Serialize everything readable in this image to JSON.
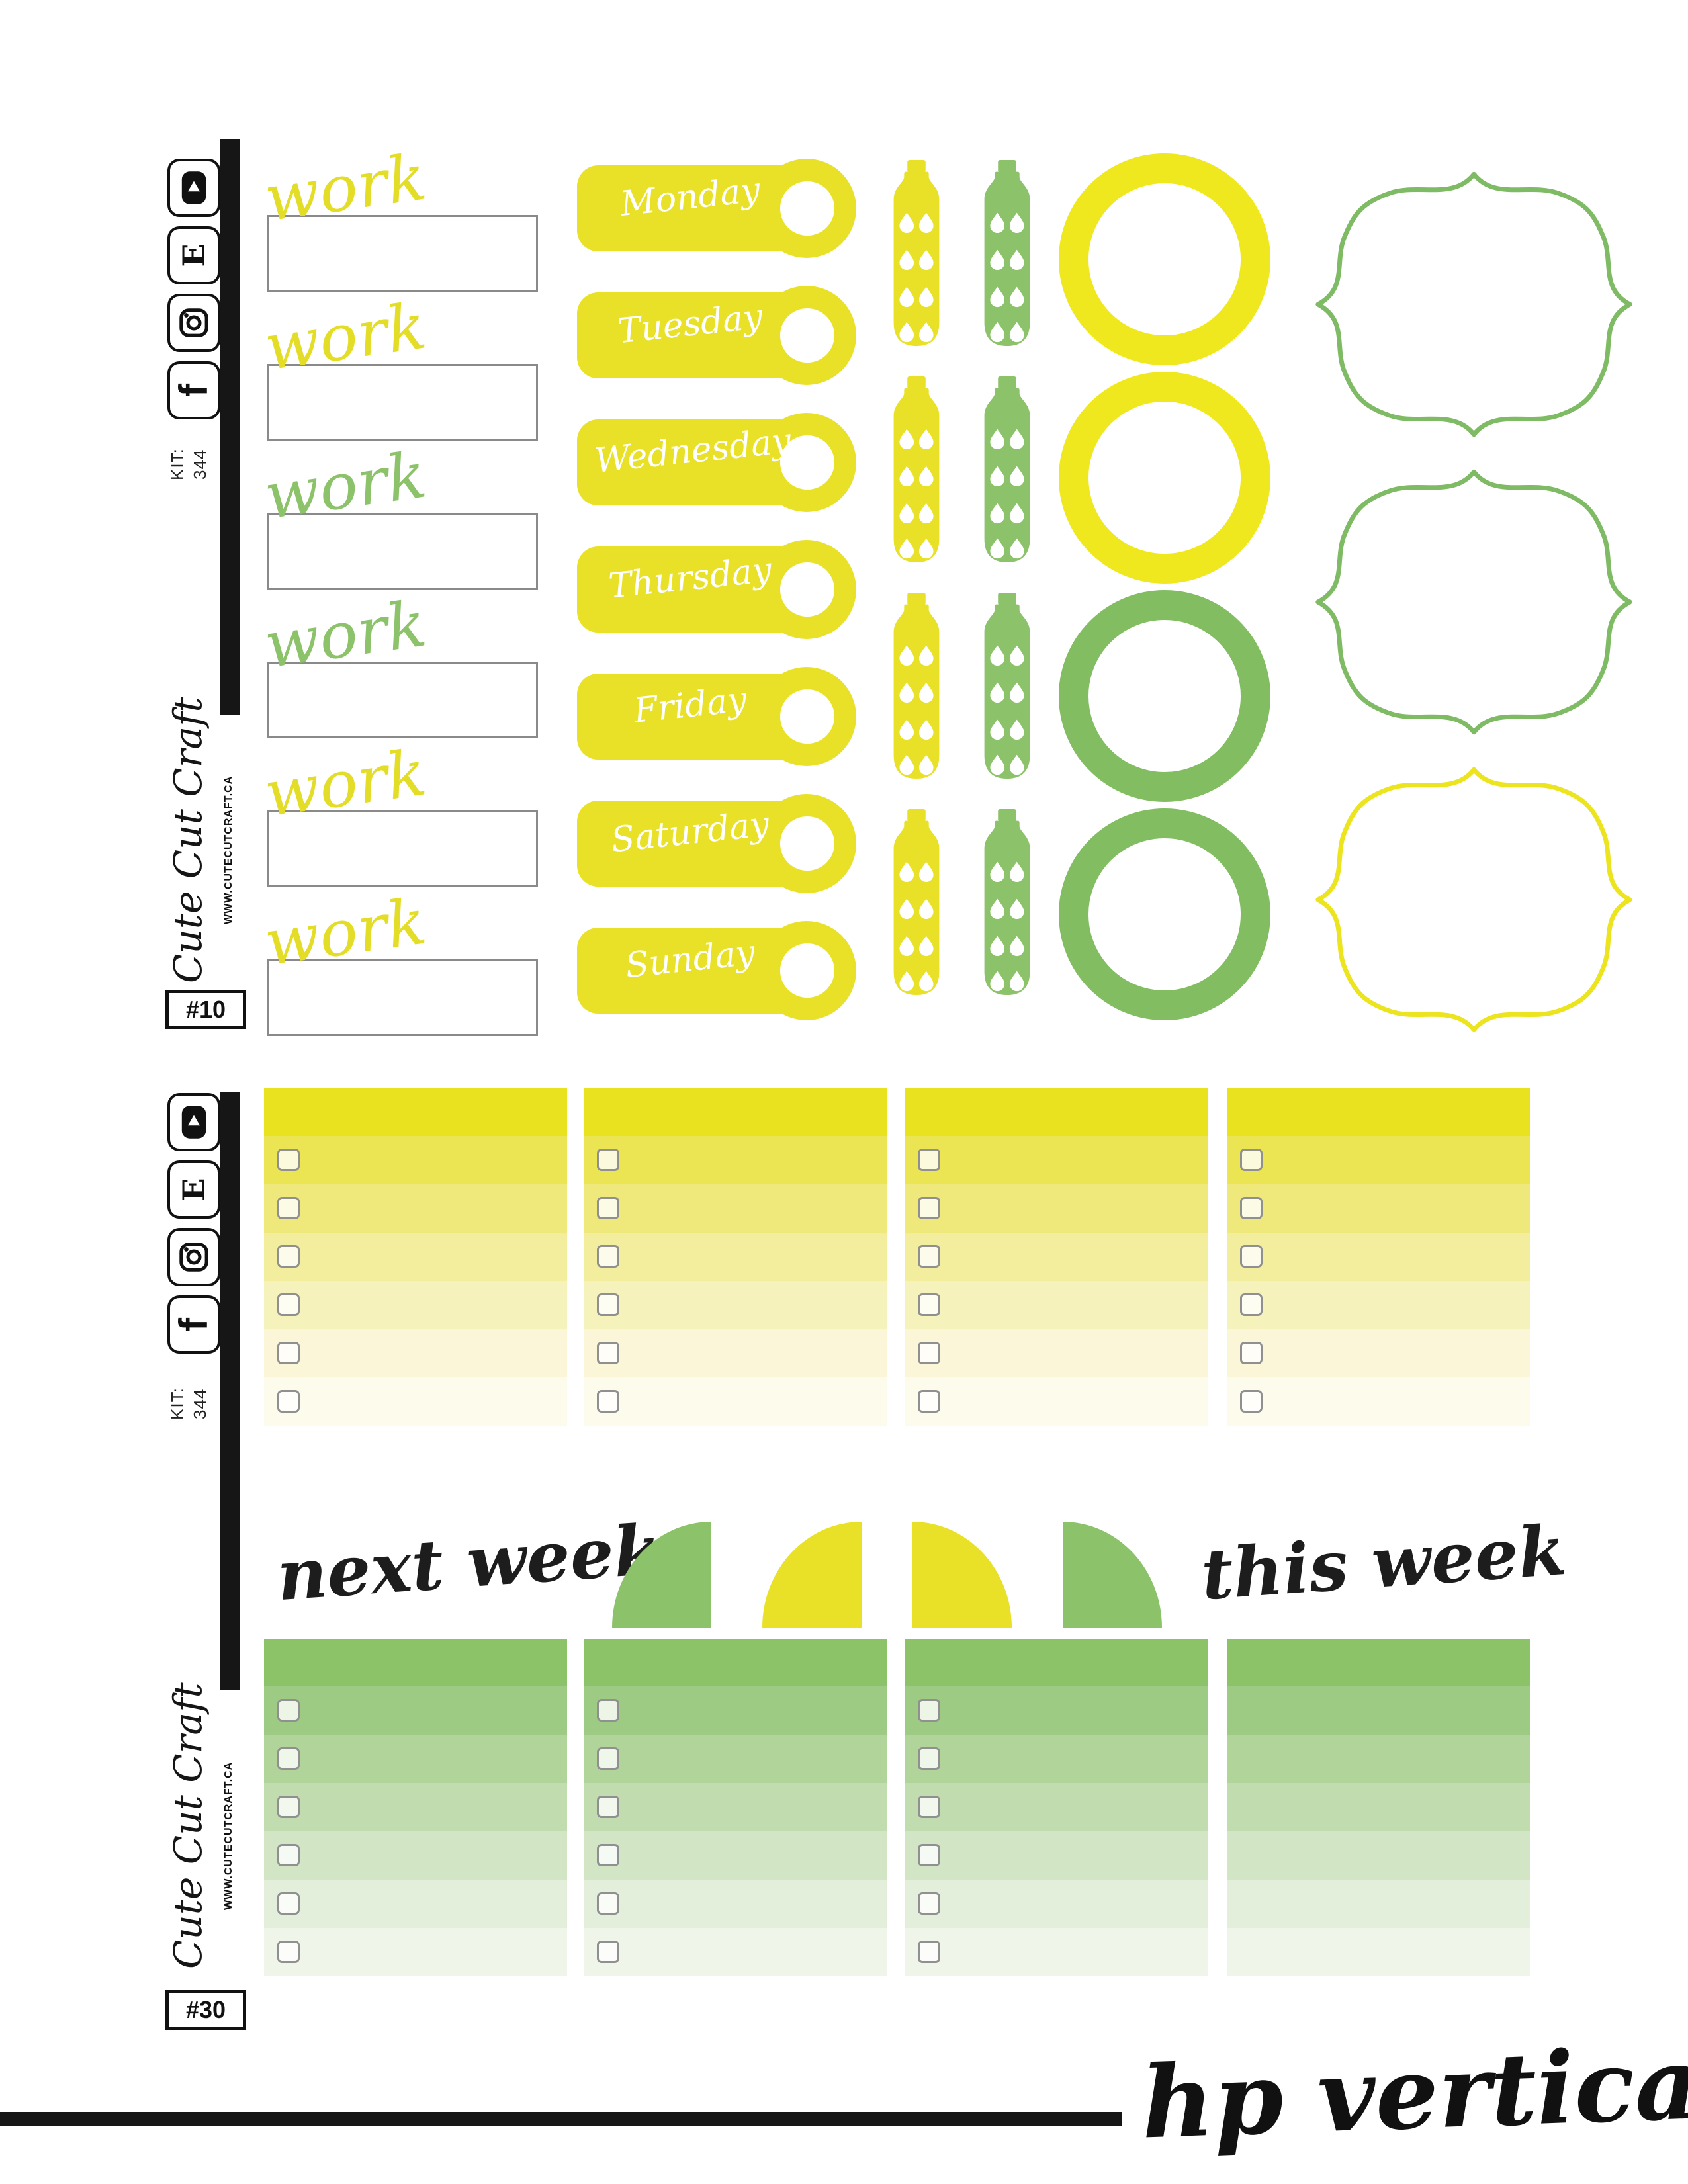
{
  "branding": {
    "logo_text": "Cute Cut Craft",
    "website": "WWW.CUTECUTCRAFT.CA",
    "kit_label": "KIT:",
    "kit_number": "344",
    "footer_title": "hp vertical kit",
    "social_icons": [
      "youtube",
      "etsy",
      "instagram",
      "facebook"
    ]
  },
  "colors": {
    "yellow": "#e8e128",
    "green": "#8cc269",
    "yellow_ring": "#f0e81e",
    "green_ring": "#82bd62",
    "box_border": "#8a8a8a",
    "black": "#161616"
  },
  "sheet1": {
    "number": "#10",
    "work_label_text": "work",
    "work_labels": [
      {
        "color": "#e4dd28"
      },
      {
        "color": "#e4dd28"
      },
      {
        "color": "#8cc269"
      },
      {
        "color": "#8cc269"
      },
      {
        "color": "#e4dd28"
      },
      {
        "color": "#e4dd28"
      }
    ],
    "day_tag_color": "#e8e128",
    "day_tags": [
      "Monday",
      "Tuesday",
      "Wednesday",
      "Thursday",
      "Friday",
      "Saturday",
      "Sunday"
    ],
    "bottle_pair_count": 4,
    "bottle_colors": [
      "#e8e128",
      "#8cc269"
    ],
    "circle_colors": [
      "#f0e81e",
      "#f0e81e",
      "#82bd62",
      "#82bd62"
    ],
    "frame_colors": [
      "#7fbb64",
      "#7fbb64",
      "#ece41e"
    ]
  },
  "sheet2": {
    "number": "#30",
    "next_week_label": "next week",
    "this_week_label": "this week",
    "yellow_palette": [
      "#e9e31f",
      "#ebe554",
      "#efe97c",
      "#f3ee9e",
      "#f6f2bb",
      "#faf6d7",
      "#fdfbeb"
    ],
    "green_palette": [
      "#8cc268",
      "#9ecb83",
      "#b0d499",
      "#c1ddb0",
      "#d2e6c6",
      "#e3eedb",
      "#f0f5ea"
    ],
    "yellow_columns": [
      {
        "checkboxes": true
      },
      {
        "checkboxes": true
      },
      {
        "checkboxes": true
      },
      {
        "checkboxes": true
      }
    ],
    "green_columns": [
      {
        "checkboxes": true
      },
      {
        "checkboxes": true
      },
      {
        "checkboxes": true
      },
      {
        "checkboxes": false
      }
    ],
    "corner_shapes": [
      {
        "color": "#8cc269",
        "curve": "left"
      },
      {
        "color": "#e8e128",
        "curve": "left"
      },
      {
        "color": "#e8e128",
        "curve": "right"
      },
      {
        "color": "#8cc269",
        "curve": "right"
      }
    ]
  }
}
